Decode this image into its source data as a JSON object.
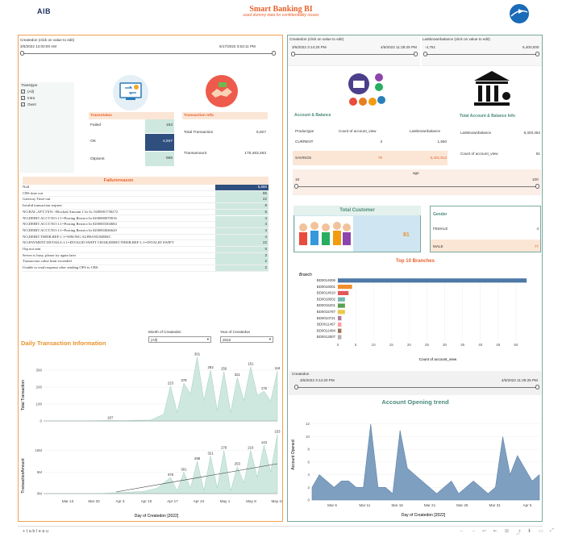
{
  "header": {
    "logo": "AIB",
    "title": "Smart Banking BI",
    "subtitle": "used dummy data for confidentiality issues"
  },
  "left": {
    "createdon_filter": {
      "label": "Createdon (click on value to edit)",
      "start": "3/6/2022 12:00:00 AM",
      "end": "5/17/2022 3:53:11 PM"
    },
    "transtype": {
      "label": "Transtype",
      "options": [
        "(All)",
        "Intra",
        "Ownt"
      ]
    },
    "transstatus": {
      "header": "Transstatus",
      "rows": [
        {
          "label": "Failed",
          "value": "163"
        },
        {
          "label": "OK",
          "value": "4,947"
        },
        {
          "label": "OtpSent",
          "value": "666"
        }
      ]
    },
    "transaction_info": {
      "header": "Transaction Info",
      "rows": [
        {
          "label": "Total Transaction",
          "value": "5,827"
        },
        {
          "label": "Transamount",
          "value": "175,463,463"
        }
      ]
    },
    "failure_reason": {
      "header": "Failurereason",
      "rows": [
        {
          "label": "Null",
          "value": "5,660"
        },
        {
          "label": "CBS time out",
          "value": "85"
        },
        {
          "label": "Gateway Time-out",
          "value": "22"
        },
        {
          "label": "Invalid transaction request",
          "value": "8"
        },
        {
          "label": "NO,BAL,AFT,TXN::-Blocked Amount 1 In Ac 0200001750272",
          "value": "6"
        },
        {
          "label": "NO,DEBIT.ACCT.NO:1:1=Posting Restrict In 0200000070016",
          "value": "4"
        },
        {
          "label": "NO,DEBIT.ACCT.NO:1:1=Posting Restrict In 0200003304684",
          "value": "4"
        },
        {
          "label": "NO,DEBIT.ACCT.NO:1:1=Posting Restrict In 0200004046620",
          "value": "4"
        },
        {
          "label": "NO,DEBIT.THEIR.REF:1:1=WRONG ALPHANUMERIC",
          "value": "4"
        },
        {
          "label": "NO,PAYMENT.DETAILS:1:1=INVALID SWIFT CHAR,DEBIT.THEIR.REF:1:1=INVALID SWIFT",
          "value": "22"
        },
        {
          "label": "Otp not sent",
          "value": "5"
        },
        {
          "label": "Server is busy, please try again later",
          "value": "3"
        },
        {
          "label": "Transaction value limit exceeded",
          "value": "2"
        },
        {
          "label": "Unable to read response after sending OFS to CBS",
          "value": "2"
        }
      ]
    },
    "daily": {
      "title": "Daily Transaction Information",
      "month_label": "Month of Createdon",
      "month_value": "(All)",
      "year_label": "Year of Createdon",
      "year_value": "2022",
      "top_axis_label": "Total Transaction",
      "bottom_axis_label": "TransactionAmount",
      "xlabel": "Day of Createdon [2022]",
      "xticks": [
        "Mar 13",
        "Mar 20",
        "Apr 3",
        "Apr 10",
        "Apr 17",
        "Apr 24",
        "May 1",
        "May 8",
        "May 15"
      ],
      "top_yticks": [
        "0",
        "100",
        "200",
        "300"
      ],
      "bottom_yticks": [
        "0M",
        "5M",
        "10M"
      ],
      "labels_top": [
        "207",
        "223",
        "378",
        "301",
        "292",
        "256",
        "321",
        "151",
        "176",
        "118",
        "295",
        "201",
        "263",
        "232",
        "275"
      ],
      "labels_bottom": [
        "378",
        "301",
        "298",
        "321",
        "279",
        "253",
        "210",
        "143",
        "153"
      ]
    }
  },
  "right": {
    "createdon_filter": {
      "label": "Createdon (click on value to edit)",
      "start": "3/6/2022 3:14:20 PM",
      "end": "4/6/2022 11:29:25 PM"
    },
    "lastknown_filter": {
      "label": "Lastknownbalance (click on value to edit)",
      "start": "-4,751",
      "end": "5,400,000"
    },
    "account_balance": {
      "header": "Account & Balance",
      "col1": "Productype",
      "col2": "Count of account_view",
      "col3": "Lastknownbalance",
      "rows": [
        {
          "type": "CURRENT",
          "count": "3",
          "balance": "1,550"
        },
        {
          "type": "SAVINGS",
          "count": "78",
          "balance": "6,401,912"
        }
      ]
    },
    "total_account": {
      "header": "Total Account & Balance Info",
      "rows": [
        {
          "label": "Lastknownbalance",
          "value": "6,403,462"
        },
        {
          "label": "Count of account_view",
          "value": "81"
        }
      ]
    },
    "age": {
      "label": "age",
      "start": "18",
      "end": "100"
    },
    "total_customer": {
      "header": "Total Customer",
      "value": "81"
    },
    "gender": {
      "header": "Gender",
      "rows": [
        {
          "label": "FEMALE",
          "value": "4"
        },
        {
          "label": "MALE",
          "value": "77"
        }
      ]
    },
    "top_branches": {
      "title": "Top 10 Branches",
      "axis_title": "Branch"
    },
    "createdon2": {
      "label": "Createdon",
      "start": "3/6/2022 3:14:20 PM",
      "end": "4/6/2022 11:29:25 PM"
    },
    "opening_trend": {
      "title": "Account Opening trend"
    }
  },
  "footer": {
    "brand": "+ t a b l e a u"
  },
  "chart_data": [
    {
      "type": "bar",
      "title": "Top 10 Branches",
      "xlabel": "Count of account_view",
      "ylabel": "Branch",
      "xlim": [
        0,
        55
      ],
      "xticks": [
        "0",
        "5",
        "10",
        "15",
        "20",
        "25",
        "30",
        "35",
        "40",
        "45",
        "50"
      ],
      "categories": [
        "BD0014006",
        "BD0016001",
        "BD0014010",
        "BD0018002",
        "BD0015201",
        "BD0015787",
        "BD0010721",
        "BD0011467",
        "BD0012484",
        "BD0012807"
      ],
      "values": [
        53,
        4,
        3,
        2,
        2,
        2,
        1,
        1,
        1,
        1
      ],
      "colors": [
        "#4e79a7",
        "#f28e2b",
        "#e15759",
        "#76b7b2",
        "#59a14f",
        "#edc948",
        "#b07aa1",
        "#ff9da7",
        "#9c755f",
        "#bab0ac"
      ]
    },
    {
      "type": "area",
      "title": "Account Opening trend",
      "xlabel": "Day of Createdon [2022]",
      "ylabel": "Account Opened",
      "ylim": [
        0,
        14
      ],
      "yticks": [
        "0",
        "2",
        "4",
        "6",
        "8",
        "10",
        "12"
      ],
      "xticks": [
        "Mar 6",
        "Mar 11",
        "Mar 16",
        "Mar 21",
        "Mar 26",
        "Mar 31",
        "Apr 5"
      ],
      "x": [
        0,
        1,
        2,
        3,
        4,
        5,
        6,
        7,
        8,
        9,
        10,
        11,
        12,
        13,
        14,
        15,
        16,
        17,
        18,
        19,
        20,
        21,
        22,
        23,
        24,
        25,
        26,
        27,
        28,
        29,
        30,
        31
      ],
      "values": [
        2,
        4,
        3,
        2,
        3,
        3,
        2,
        2,
        12,
        2,
        2,
        1,
        11,
        5,
        4,
        3,
        2,
        1,
        2,
        3,
        1,
        2,
        3,
        2,
        1,
        2,
        10,
        4,
        7,
        5,
        3,
        4
      ],
      "color": "#7f9fc0"
    },
    {
      "type": "area",
      "title": "Daily Transaction Information - Total Transaction",
      "ylabel": "Total Transaction",
      "ylim": [
        0,
        400
      ],
      "xlim": [
        0,
        70
      ],
      "x": [
        0,
        4,
        8,
        12,
        16,
        20,
        24,
        28,
        32,
        36,
        38,
        40,
        42,
        44,
        46,
        48,
        50,
        52,
        54,
        56,
        58,
        60,
        62,
        64,
        66,
        68,
        70
      ],
      "values": [
        1,
        1,
        1,
        1,
        2,
        3,
        2,
        4,
        5,
        40,
        207,
        50,
        223,
        160,
        378,
        120,
        301,
        60,
        292,
        50,
        256,
        120,
        321,
        151,
        176,
        118,
        295
      ],
      "color": "#cfe8df"
    },
    {
      "type": "area",
      "title": "Daily Transaction Information - TransactionAmount",
      "ylabel": "TransactionAmount",
      "ylim": [
        0,
        12
      ],
      "xlim": [
        0,
        70
      ],
      "x": [
        0,
        8,
        16,
        24,
        30,
        34,
        38,
        40,
        42,
        44,
        46,
        48,
        50,
        52,
        54,
        56,
        58,
        60,
        62,
        64,
        66,
        68,
        70
      ],
      "values": [
        0,
        0,
        0,
        0.2,
        0.4,
        1,
        3,
        0.5,
        4,
        1,
        6,
        0.5,
        7,
        1,
        8,
        0.5,
        5,
        2,
        8,
        3,
        9,
        4,
        11
      ],
      "color": "#cfe8df"
    }
  ]
}
